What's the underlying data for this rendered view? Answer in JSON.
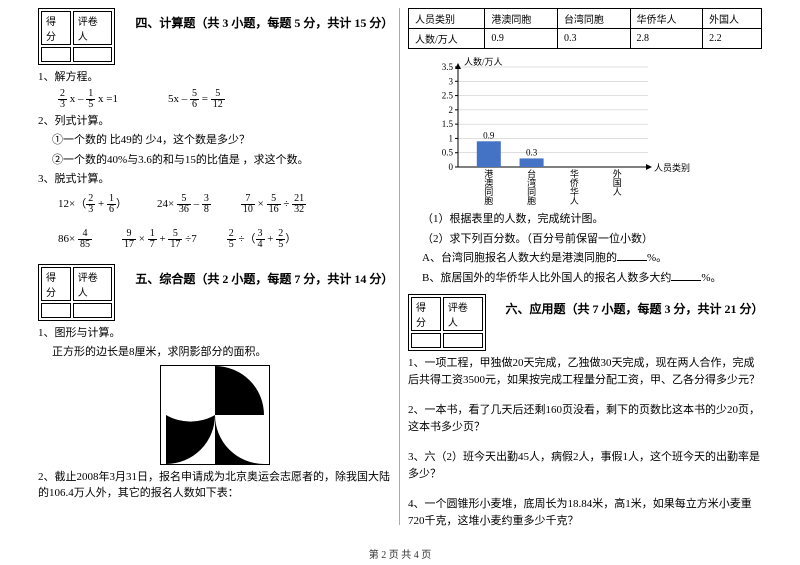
{
  "left": {
    "scorebox": {
      "c1": "得分",
      "c2": "评卷人"
    },
    "sec4_title": "四、计算题（共 3 小题，每题 5 分，共计 15 分）",
    "q1": "1、解方程。",
    "q1_eq1a": "2",
    "q1_eq1b": "3",
    "q1_eq1c": "1",
    "q1_eq1d": "5",
    "q1_eq1_txt": " x – ",
    "q1_eq1_rhs": " x =1",
    "q1_eq2_lhs": "5x – ",
    "q1_eq2a": "5",
    "q1_eq2b": "6",
    "q1_eq2_mid": " = ",
    "q1_eq2c": "5",
    "q1_eq2d": "12",
    "q2": "2、列式计算。",
    "q2_1": "①一个数的 比49的 少4，这个数是多少？",
    "q2_2": "②一个数的40%与3.6的和与15的比值是 ，求这个数。",
    "q3": "3、脱式计算。",
    "e3_1_pre": "12×（",
    "e3_1_a": "2",
    "e3_1_b": "3",
    "e3_1_mid": " + ",
    "e3_1_c": "1",
    "e3_1_d": "6",
    "e3_1_post": "）",
    "e3_2_pre": "24× ",
    "e3_2_a": "5",
    "e3_2_b": "36",
    "e3_2_mid": " – ",
    "e3_2_c": "3",
    "e3_2_d": "8",
    "e3_3_a": "7",
    "e3_3_b": "10",
    "e3_3_mid1": " × ",
    "e3_3_c": "5",
    "e3_3_d": "16",
    "e3_3_mid2": " ÷ ",
    "e3_3_e": "21",
    "e3_3_f": "32",
    "e4_1_pre": "86× ",
    "e4_1_a": "4",
    "e4_1_b": "85",
    "e4_2_a": "9",
    "e4_2_b": "17",
    "e4_2_m1": " × ",
    "e4_2_c": "1",
    "e4_2_d": "7",
    "e4_2_m2": " + ",
    "e4_2_e": "5",
    "e4_2_f": "17",
    "e4_2_post": " ÷7",
    "e4_3_a": "2",
    "e4_3_b": "5",
    "e4_3_m1": " ÷（",
    "e4_3_c": "3",
    "e4_3_d": "4",
    "e4_3_m2": " + ",
    "e4_3_e": "2",
    "e4_3_f": "5",
    "e4_3_post": "）",
    "sec5_title": "五、综合题（共 2 小题，每题 7 分，共计 14 分）",
    "q5_1": "1、图形与计算。",
    "q5_1_sub": "正方形的边长是8厘米，求阴影部分的面积。",
    "q5_2": "2、截止2008年3月31日，报名申请成为北京奥运会志愿者的，除我国大陆的106.4万人外，其它的报名人数如下表："
  },
  "right": {
    "table": {
      "h1": "人员类别",
      "h2": "港澳同胞",
      "h3": "台湾同胞",
      "h4": "华侨华人",
      "h5": "外国人",
      "r1": "人数/万人",
      "v1": "0.9",
      "v2": "0.3",
      "v3": "2.8",
      "v4": "2.2"
    },
    "chart": {
      "ylabel": "人数/万人",
      "xlabel": "人员类别",
      "yticks": [
        "0",
        "0.5",
        "1",
        "1.5",
        "2",
        "2.5",
        "3",
        "3.5"
      ],
      "ymax": 3.5,
      "cats": [
        "港澳同胞",
        "台湾同胞",
        "华侨华人",
        "外国人"
      ],
      "vals": [
        0.9,
        0.3,
        null,
        null
      ],
      "labels": [
        "0.9",
        "0.3",
        "",
        ""
      ],
      "bar_color": "#4472c4",
      "grid_color": "#bfbfbf",
      "axis_color": "#000000"
    },
    "cq1": "（1）根据表里的人数，完成统计图。",
    "cq2": "（2）求下列百分数。（百分号前保留一位小数）",
    "cqA": "A、台湾同胞报名人数大约是港澳同胞的",
    "cqA2": "%。",
    "cqB": "B、旅居国外的华侨华人比外国人的报名人数多大约",
    "cqB2": "%。",
    "scorebox": {
      "c1": "得分",
      "c2": "评卷人"
    },
    "sec6_title": "六、应用题（共 7 小题，每题 3 分，共计 21 分）",
    "a1": "1、一项工程，甲独做20天完成，乙独做30天完成，现在两人合作，完成后共得工资3500元，如果按完成工程量分配工资，甲、乙各分得多少元？",
    "a2": "2、一本书，看了几天后还剩160页没看，剩下的页数比这本书的少20页，这本书多少页？",
    "a3": "3、六（2）班今天出勤45人，病假2人，事假1人，这个班今天的出勤率是多少？",
    "a4": "4、一个圆锥形小麦堆，底周长为18.84米，高1米，如果每立方米小麦重720千克，这堆小麦约重多少千克？"
  },
  "footer": "第 2 页 共 4 页"
}
